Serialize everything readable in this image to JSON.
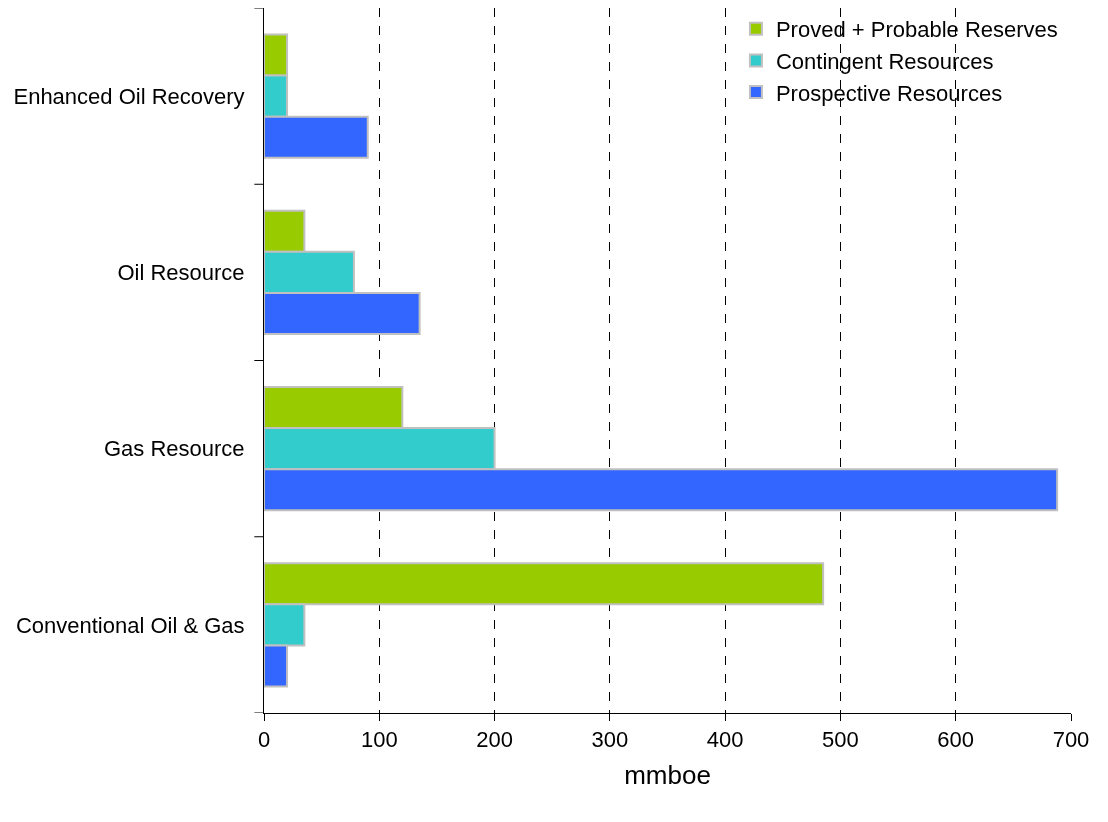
{
  "chart_data": {
    "type": "bar",
    "orientation": "horizontal",
    "xlabel": "mmboe",
    "categories": [
      "Enhanced Oil Recovery",
      "Oil Resource",
      "Gas Resource",
      "Conventional Oil & Gas"
    ],
    "series": [
      {
        "name": "Proved + Probable Reserves",
        "color": "#99cc00",
        "values": [
          20,
          35,
          120,
          485
        ]
      },
      {
        "name": "Contingent Resources",
        "color": "#33cccc",
        "values": [
          20,
          78,
          200,
          35
        ]
      },
      {
        "name": "Prospective Resources",
        "color": "#3366ff",
        "values": [
          90,
          135,
          688,
          20
        ]
      }
    ],
    "xlim": [
      0,
      700
    ],
    "xticks": [
      0,
      100,
      200,
      300,
      400,
      500,
      600,
      700
    ],
    "grid": "x",
    "legend": "top right"
  }
}
